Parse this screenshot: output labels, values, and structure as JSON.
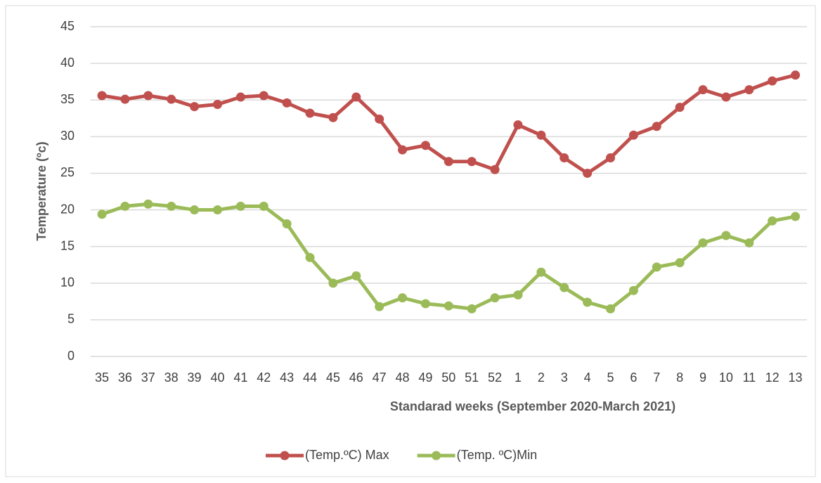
{
  "chart_data": {
    "type": "line",
    "x_label": "Standarad  weeks (September 2020-March 2021)",
    "y_label": "Temperature (ºc)",
    "categories": [
      "35",
      "36",
      "37",
      "38",
      "39",
      "40",
      "41",
      "42",
      "43",
      "44",
      "45",
      "46",
      "47",
      "48",
      "49",
      "50",
      "51",
      "52",
      "1",
      "2",
      "3",
      "4",
      "5",
      "6",
      "7",
      "8",
      "9",
      "10",
      "11",
      "12",
      "13"
    ],
    "series": [
      {
        "name": "(Temp.ºC) Max",
        "color": "#c0504d",
        "values": [
          35.6,
          35.1,
          35.6,
          35.1,
          34.1,
          34.4,
          35.4,
          35.6,
          34.6,
          33.2,
          32.6,
          35.4,
          32.4,
          28.2,
          28.8,
          26.6,
          26.6,
          25.5,
          31.6,
          30.2,
          27.1,
          25.0,
          27.1,
          30.2,
          31.4,
          34.0,
          36.4,
          35.4,
          36.4,
          37.6,
          38.4
        ]
      },
      {
        "name": "(Temp. ºC)Min",
        "color": "#9bbb59",
        "values": [
          19.4,
          20.5,
          20.8,
          20.5,
          20.0,
          20.0,
          20.5,
          20.5,
          18.1,
          13.5,
          10.0,
          11.0,
          6.8,
          8.0,
          7.2,
          6.9,
          6.5,
          8.0,
          8.4,
          11.5,
          9.4,
          7.4,
          6.5,
          9.0,
          12.2,
          12.8,
          15.5,
          16.5,
          15.5,
          18.5,
          19.1
        ]
      }
    ],
    "ylim": [
      0,
      45
    ],
    "yticks": [
      0,
      5,
      10,
      15,
      20,
      25,
      30,
      35,
      40,
      45
    ],
    "grid": true,
    "legend": "bottom"
  }
}
